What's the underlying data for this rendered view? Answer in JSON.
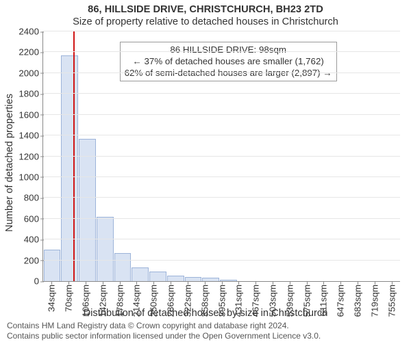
{
  "title_line1": "86, HILLSIDE DRIVE, CHRISTCHURCH, BH23 2TD",
  "title_line2": "Size of property relative to detached houses in Christchurch",
  "ylabel": "Number of detached properties",
  "xlabel": "Distribution of detached houses by size in Christchurch",
  "footer_line1": "Contains HM Land Registry data © Crown copyright and database right 2024.",
  "footer_line2": "Contains public sector information licensed under the Open Government Licence v3.0.",
  "chart": {
    "type": "histogram",
    "background_color": "#ffffff",
    "grid_color": "#e6e6e6",
    "axis_color": "#888888",
    "bar_fill": "#d9e3f3",
    "bar_stroke": "#9cb3d9",
    "marker_color": "#d01515",
    "text_color": "#333333",
    "title_fontsize_pt": 11,
    "subtitle_fontsize_pt": 11,
    "axis_label_fontsize_pt": 11,
    "tick_fontsize_pt": 10,
    "annot_fontsize_pt": 10,
    "footer_fontsize_pt": 9,
    "y": {
      "min": 0,
      "max": 2400,
      "step": 200
    },
    "bins": [
      {
        "label": "34sqm",
        "count": 300
      },
      {
        "label": "70sqm",
        "count": 2170
      },
      {
        "label": "106sqm",
        "count": 1370
      },
      {
        "label": "142sqm",
        "count": 620
      },
      {
        "label": "178sqm",
        "count": 270
      },
      {
        "label": "214sqm",
        "count": 130
      },
      {
        "label": "250sqm",
        "count": 95
      },
      {
        "label": "286sqm",
        "count": 55
      },
      {
        "label": "322sqm",
        "count": 40
      },
      {
        "label": "358sqm",
        "count": 30
      },
      {
        "label": "395sqm",
        "count": 15
      },
      {
        "label": "431sqm",
        "count": 0
      },
      {
        "label": "467sqm",
        "count": 0
      },
      {
        "label": "503sqm",
        "count": 0
      },
      {
        "label": "539sqm",
        "count": 0
      },
      {
        "label": "575sqm",
        "count": 0
      },
      {
        "label": "611sqm",
        "count": 0
      },
      {
        "label": "647sqm",
        "count": 0
      },
      {
        "label": "683sqm",
        "count": 0
      },
      {
        "label": "719sqm",
        "count": 0
      },
      {
        "label": "755sqm",
        "count": 0
      }
    ],
    "marker_sqm": 98,
    "range_sqm": {
      "min": 34,
      "max": 791
    },
    "annotation": {
      "line1": "86 HILLSIDE DRIVE: 98sqm",
      "line2": "← 37% of detached houses are smaller (1,762)",
      "line3": "62% of semi-detached houses are larger (2,897) →",
      "top_value": 2300,
      "left_bin_center": 4
    }
  }
}
